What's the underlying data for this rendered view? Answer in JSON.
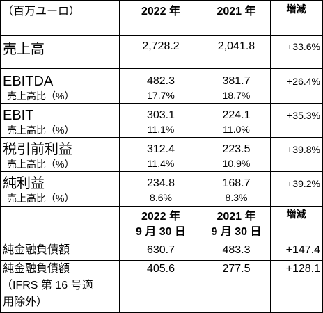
{
  "header": {
    "unit": "（百万ユーロ）",
    "col_2022": "2022 年",
    "col_2021": "2021 年",
    "col_change": "増減"
  },
  "rows": [
    {
      "label": "売上高",
      "v2022": "2,728.2",
      "v2021": "2,041.8",
      "change": "+33.6%"
    },
    {
      "label": "EBITDA",
      "sub": "売上高比（%）",
      "v2022": "482.3",
      "s2022": "17.7%",
      "v2021": "381.7",
      "s2021": "18.7%",
      "change": "+26.4%"
    },
    {
      "label": "EBIT",
      "sub": "売上高比（%）",
      "v2022": "303.1",
      "s2022": "11.1%",
      "v2021": "224.1",
      "s2021": "11.0%",
      "change": "+35.3%"
    },
    {
      "label": "税引前利益",
      "sub": "売上高比（%）",
      "v2022": "312.4",
      "s2022": "11.4%",
      "v2021": "223.5",
      "s2021": "10.9%",
      "change": "+39.8%"
    },
    {
      "label": "純利益",
      "sub": "売上高比（%）",
      "v2022": "234.8",
      "s2022": "8.6%",
      "v2021": "168.7",
      "s2021": "8.3%",
      "change": "+39.2%"
    }
  ],
  "header2": {
    "col_2022_line1": "2022 年",
    "col_2022_line2": "9 月 30 日",
    "col_2021_line1": "2021 年",
    "col_2021_line2": "9 月 30 日",
    "col_change": "増減"
  },
  "debt_rows": [
    {
      "label": "純金融負債額",
      "v2022": "630.7",
      "v2021": "483.3",
      "change": "+147.4"
    },
    {
      "label_line1": "純金融負債額",
      "label_line2": "（IFRS 第 16 号適",
      "label_line3": "用除外）",
      "v2022": "405.6",
      "v2021": "277.5",
      "change": "+128.1"
    }
  ]
}
